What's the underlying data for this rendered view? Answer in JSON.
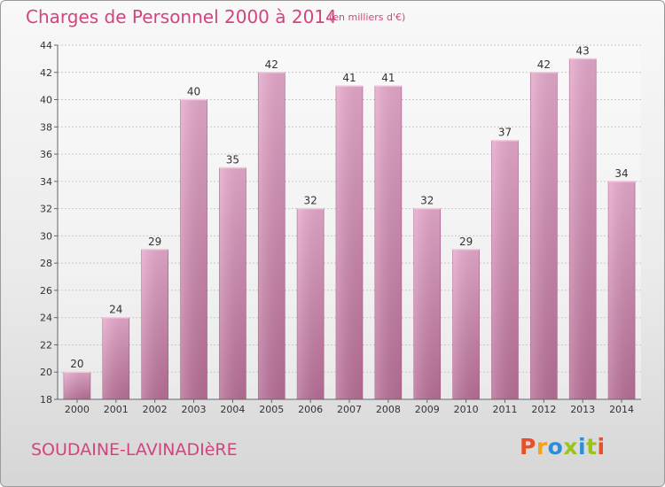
{
  "header": {
    "title": "Charges de Personnel 2000 à 2014",
    "subtitle": "(en milliers d'€)"
  },
  "footer": {
    "town": "SOUDAINE-LAVINADIèRE",
    "logo": {
      "letters": [
        "P",
        "r",
        "o",
        "x",
        "i",
        "t",
        "i"
      ],
      "colors": [
        "#e8502a",
        "#f4a11d",
        "#2a8fd6",
        "#9ac31c",
        "#2a8fd6",
        "#9ac31c",
        "#e8502a"
      ]
    }
  },
  "chart_data": {
    "type": "bar",
    "title": "Charges de Personnel 2000 à 2014",
    "subtitle": "(en milliers d'€)",
    "categories": [
      "2000",
      "2001",
      "2002",
      "2003",
      "2004",
      "2005",
      "2006",
      "2007",
      "2008",
      "2009",
      "2010",
      "2011",
      "2012",
      "2013",
      "2014"
    ],
    "values": [
      20,
      24,
      29,
      40,
      35,
      42,
      32,
      41,
      41,
      32,
      29,
      37,
      42,
      43,
      34
    ],
    "ylim": [
      18,
      44
    ],
    "yticks": [
      18,
      20,
      22,
      24,
      26,
      28,
      30,
      32,
      34,
      36,
      38,
      40,
      42,
      44
    ],
    "grid": true,
    "bar_color": "#d27ba6"
  }
}
